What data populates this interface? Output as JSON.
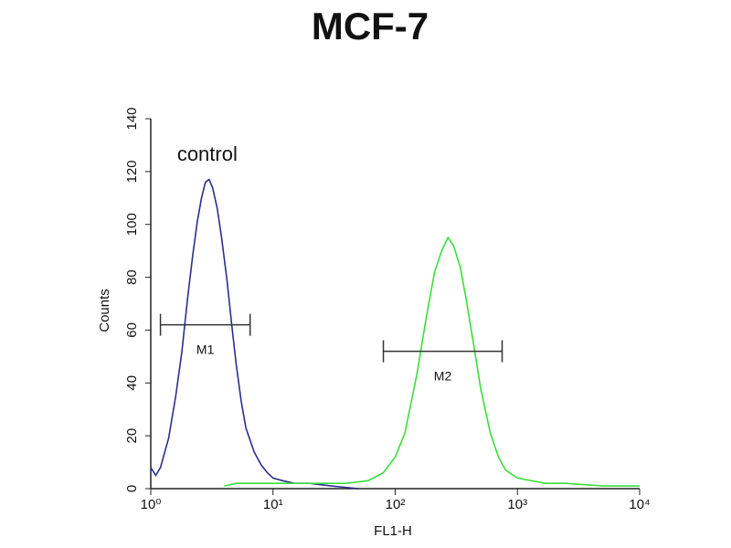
{
  "chart_data": {
    "type": "line",
    "title": "MCF-7",
    "xlabel": "FL1-H",
    "ylabel": "Counts",
    "xscale": "log",
    "xlim": [
      1,
      10000
    ],
    "ylim": [
      0,
      140
    ],
    "xticks": [
      {
        "value": 1,
        "label": "10⁰"
      },
      {
        "value": 10,
        "label": "10¹"
      },
      {
        "value": 100,
        "label": "10²"
      },
      {
        "value": 1000,
        "label": "10³"
      },
      {
        "value": 10000,
        "label": "10⁴"
      }
    ],
    "yticks": [
      0,
      20,
      40,
      60,
      80,
      100,
      120,
      140
    ],
    "series": [
      {
        "name": "control",
        "color": "#2b2f8f",
        "x": [
          1,
          1.1,
          1.2,
          1.4,
          1.6,
          1.8,
          2.0,
          2.2,
          2.4,
          2.6,
          2.8,
          3.0,
          3.2,
          3.5,
          3.8,
          4.2,
          4.6,
          5.0,
          5.5,
          6,
          7,
          8,
          9,
          10,
          12,
          15,
          20,
          30,
          50
        ],
        "values": [
          8,
          5,
          8,
          19,
          35,
          52,
          72,
          88,
          101,
          110,
          116,
          117,
          114,
          106,
          95,
          79,
          62,
          47,
          33,
          23,
          14,
          9,
          6,
          4,
          3,
          2,
          2,
          1,
          0
        ]
      },
      {
        "color": "#3adf3a",
        "x": [
          4,
          5,
          10,
          20,
          40,
          60,
          80,
          100,
          120,
          150,
          180,
          210,
          240,
          270,
          300,
          340,
          380,
          430,
          500,
          600,
          700,
          800,
          1000,
          1300,
          1700,
          2500,
          5000,
          10000
        ],
        "values": [
          1,
          2,
          2,
          2,
          2,
          3,
          6,
          12,
          21,
          43,
          65,
          82,
          90,
          95,
          92,
          84,
          72,
          57,
          38,
          21,
          12,
          7,
          4,
          3,
          2,
          2,
          1,
          1
        ]
      }
    ],
    "markers": [
      {
        "label": "M1",
        "x": [
          1.2,
          6.5
        ],
        "y": 62
      },
      {
        "label": "M2",
        "x": [
          80,
          750
        ],
        "y": 52
      }
    ]
  }
}
